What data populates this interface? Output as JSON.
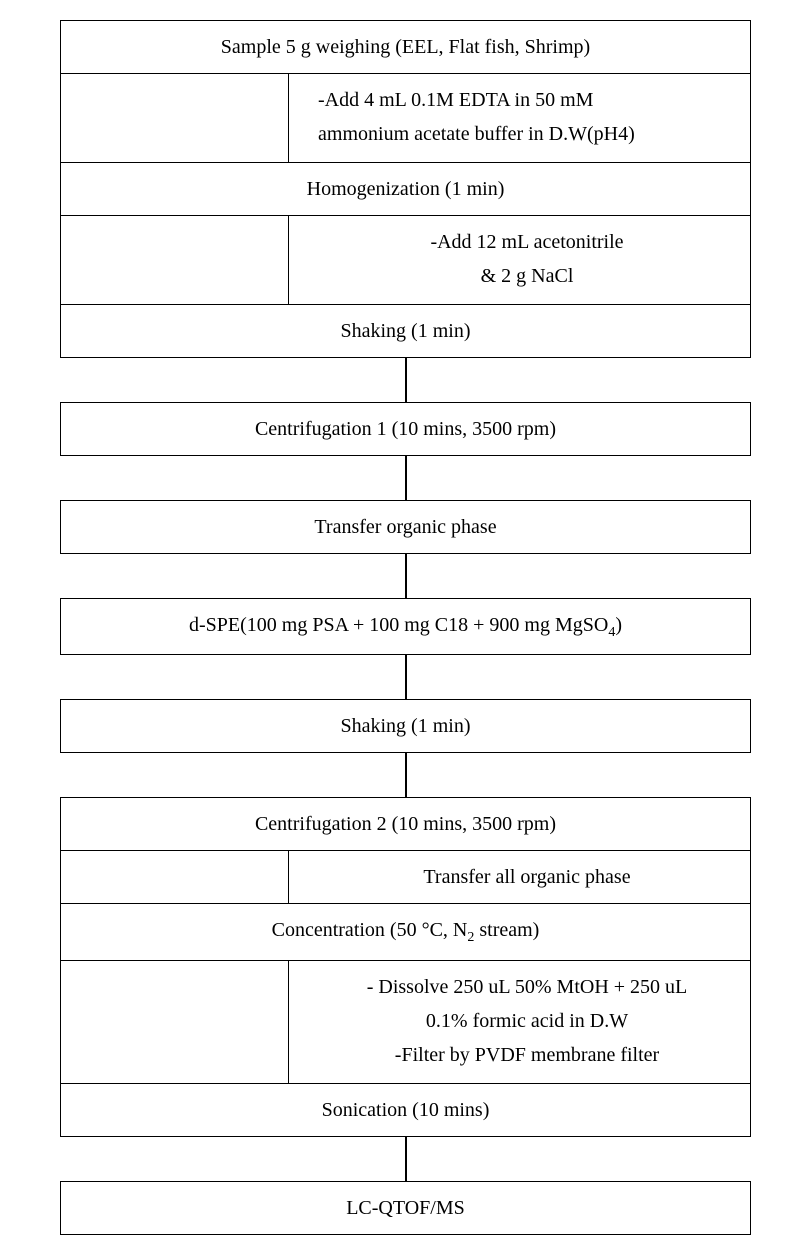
{
  "flowchart": {
    "type": "flowchart",
    "background_color": "#ffffff",
    "border_color": "#000000",
    "text_color": "#000000",
    "font_family": "Times New Roman",
    "font_size": 20,
    "border_width": 1.5,
    "steps": [
      {
        "label": "Sample 5 g weighing (EEL, Flat fish, Shrimp)"
      },
      {
        "label": "Homogenization (1 min)"
      },
      {
        "label": "Shaking (1 min)"
      },
      {
        "label": "Centrifugation 1 (10 mins, 3500 rpm)"
      },
      {
        "label": "Transfer organic phase"
      },
      {
        "label_html": "d-SPE(100 mg PSA + 100 mg C18 + 900 mg MgSO<sub>4</sub>)"
      },
      {
        "label": "Shaking (1 min)"
      },
      {
        "label": "Centrifugation 2 (10 mins, 3500 rpm)"
      },
      {
        "label_html": "Concentration (50 °C, N<sub>2</sub> stream)"
      },
      {
        "label": "Sonication (10 mins)"
      },
      {
        "label": "LC-QTOF/MS"
      }
    ],
    "annotations": [
      {
        "after_step": 0,
        "lines": [
          "-Add 4 mL 0.1M EDTA in 50 mM",
          "ammonium acetate buffer in D.W(pH4)"
        ],
        "align": "left"
      },
      {
        "after_step": 1,
        "lines": [
          "-Add 12 mL acetonitrile",
          "& 2 g NaCl"
        ],
        "align": "center"
      },
      {
        "after_step": 7,
        "lines": [
          "Transfer all organic phase"
        ],
        "align": "center"
      },
      {
        "after_step": 8,
        "lines": [
          "- Dissolve 250 uL 50% MtOH + 250 uL",
          "0.1% formic acid in D.W",
          "-Filter by PVDF membrane filter"
        ],
        "align": "center"
      }
    ],
    "plain_connectors_after": [
      2,
      3,
      4,
      5,
      6,
      9
    ]
  }
}
